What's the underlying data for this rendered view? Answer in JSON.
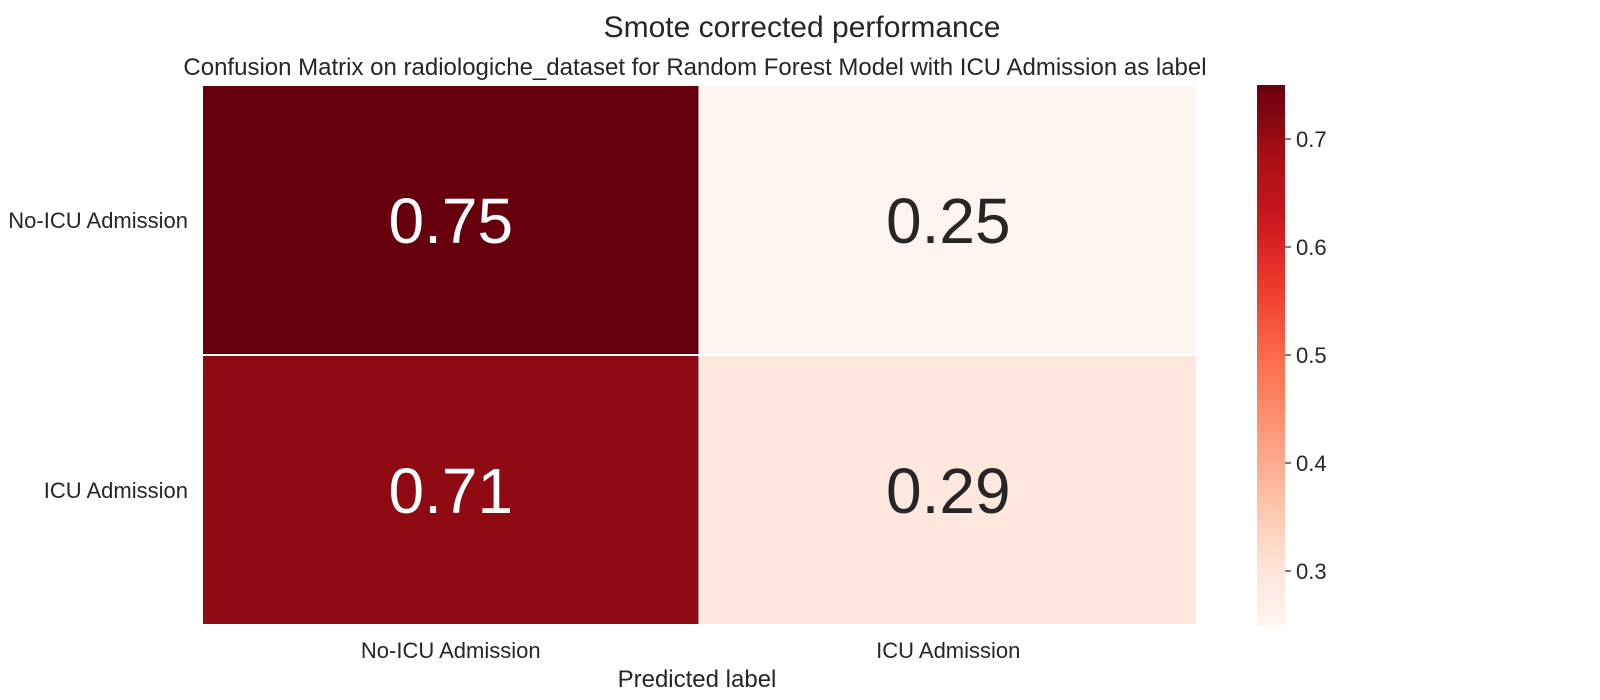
{
  "chart_data": {
    "type": "heatmap",
    "suptitle": "Smote corrected performance",
    "title": "Confusion Matrix on radiologiche_dataset for Random Forest Model with ICU Admission as label",
    "xlabel": "Predicted label",
    "ylabel": "",
    "x_categories": [
      "No-ICU Admission",
      "ICU Admission"
    ],
    "y_categories": [
      "No-ICU Admission",
      "ICU Admission"
    ],
    "values": [
      [
        0.75,
        0.25
      ],
      [
        0.71,
        0.29
      ]
    ],
    "value_labels": [
      [
        "0.75",
        "0.25"
      ],
      [
        "0.71",
        "0.29"
      ]
    ],
    "colormap": "Reds",
    "colorbar": {
      "range": [
        0.25,
        0.75
      ],
      "ticks": [
        0.7,
        0.6,
        0.5,
        0.4,
        0.3
      ],
      "tick_labels": [
        "0.7",
        "0.6",
        "0.5",
        "0.4",
        "0.3"
      ]
    },
    "grid": false,
    "legend": "colorbar-right"
  }
}
